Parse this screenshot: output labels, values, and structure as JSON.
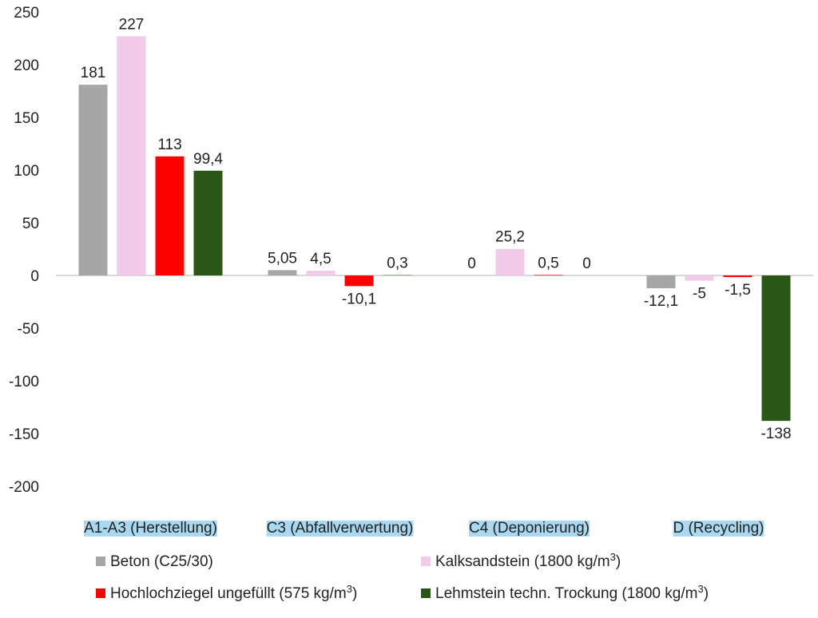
{
  "chart_data": {
    "type": "bar",
    "title": "",
    "xlabel": "",
    "ylabel": "",
    "ylim": [
      -200,
      250
    ],
    "yticks": [
      250,
      200,
      150,
      100,
      50,
      0,
      -50,
      -100,
      -150,
      -200
    ],
    "ytick_labels": [
      "250",
      "200",
      "150",
      "100",
      "50",
      "0",
      "-50",
      "-100",
      "-150",
      "-200"
    ],
    "categories": [
      "A1-A3 (Herstellung)",
      "C3 (Abfallverwertung)",
      "C4 (Deponierung)",
      "D (Recycling)"
    ],
    "category_highlight_color": "#a9d8f0",
    "series": [
      {
        "name": "Beton (C25/30)",
        "color": "#a6a6a6",
        "values": [
          181,
          5.05,
          0,
          -12.1
        ],
        "labels": [
          "181",
          "5,05",
          "0",
          "-12,1"
        ]
      },
      {
        "name": "Kalksandstein (1800 kg/m",
        "sup": "3",
        "suffix": ")",
        "color": "#f2cbe9",
        "values": [
          227,
          4.5,
          25.2,
          -5
        ],
        "labels": [
          "227",
          "4,5",
          "25,2",
          "-5"
        ]
      },
      {
        "name": "Hochlochziegel ungefüllt (575 kg/m",
        "sup": "3",
        "suffix": ")",
        "color": "#ff0000",
        "values": [
          113,
          -10.1,
          0.5,
          -1.5
        ],
        "labels": [
          "113",
          "-10,1",
          "0,5",
          "-1,5"
        ]
      },
      {
        "name": "Lehmstein techn. Trockung (1800 kg/m",
        "sup": "3",
        "suffix": ")",
        "color": "#2b5716",
        "values": [
          99.4,
          0.3,
          0,
          -138
        ],
        "labels": [
          "99,4",
          "0,3",
          "0",
          "-138"
        ]
      }
    ],
    "legend_position": "bottom"
  }
}
